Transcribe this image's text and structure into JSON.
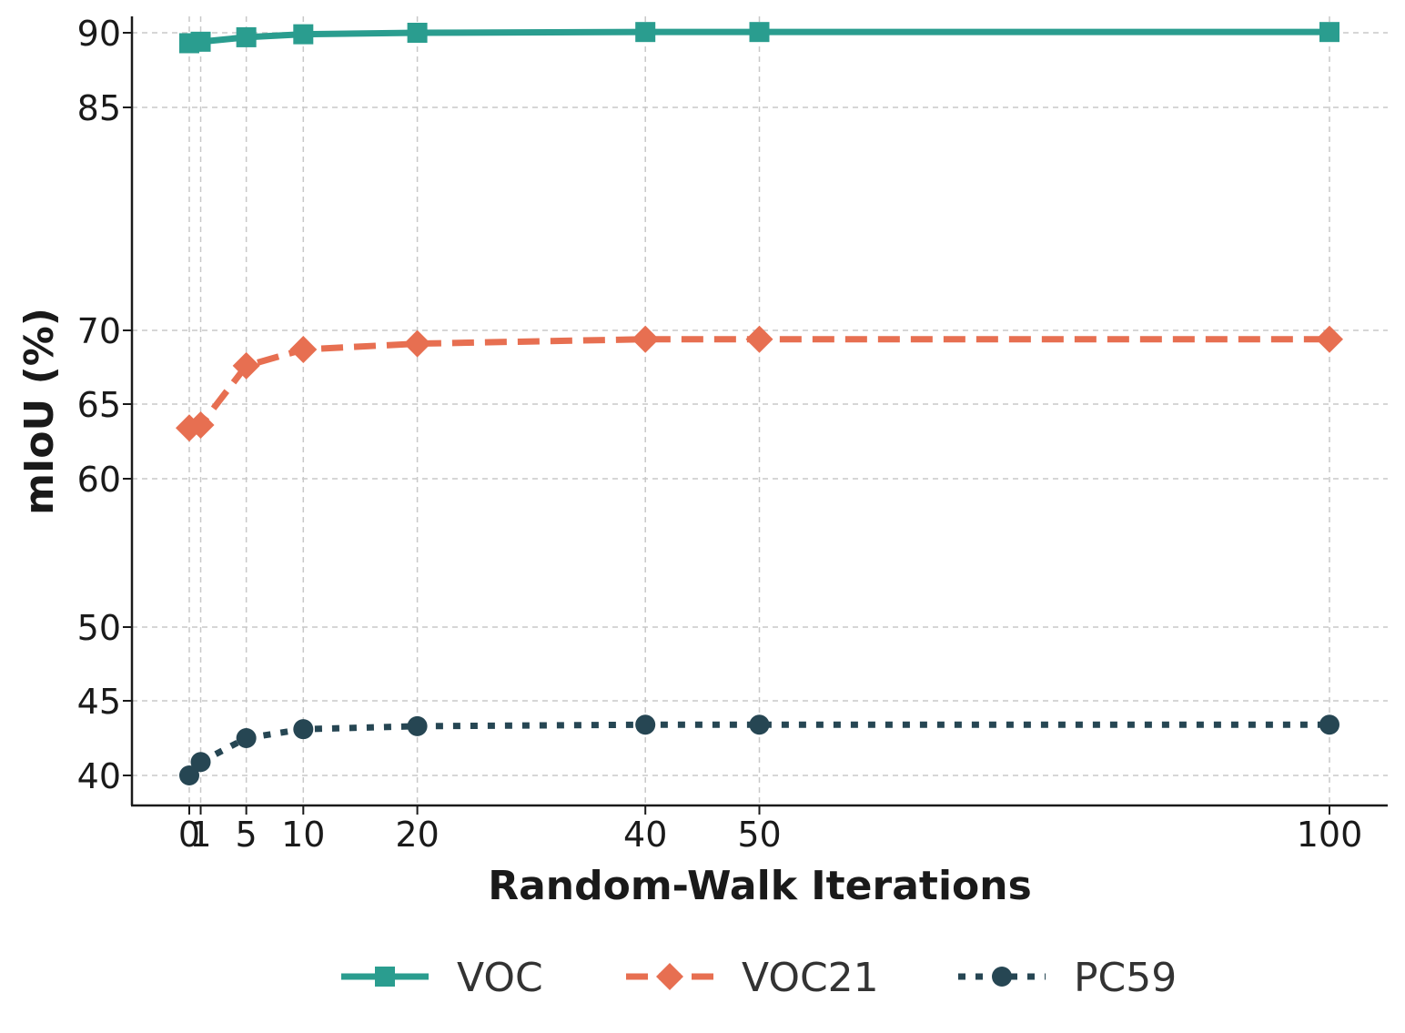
{
  "chart_data": {
    "type": "line",
    "title": "",
    "xlabel": "Random-Walk Iterations",
    "ylabel": "mIoU (%)",
    "x": [
      0,
      1,
      5,
      10,
      20,
      40,
      50,
      100
    ],
    "xticks": [
      "0",
      "1",
      "5",
      "10",
      "20",
      "40",
      "50",
      "100"
    ],
    "yticks": [
      "40",
      "45",
      "50",
      "60",
      "65",
      "70",
      "85",
      "90"
    ],
    "y_scale": "broken",
    "y_segments": [
      [
        38,
        52
      ],
      [
        58,
        72
      ],
      [
        83,
        91
      ]
    ],
    "grid": true,
    "legend_position": "bottom-center",
    "series": [
      {
        "name": "VOC",
        "color": "#2a9d8f",
        "line_style": "solid",
        "marker": "square",
        "values": [
          89.3,
          89.4,
          89.7,
          89.9,
          90.0,
          90.05,
          90.05,
          90.05
        ]
      },
      {
        "name": "VOC21",
        "color": "#e76f51",
        "line_style": "dashed",
        "marker": "diamond",
        "values": [
          63.4,
          63.6,
          67.6,
          68.7,
          69.1,
          69.4,
          69.4,
          69.4
        ]
      },
      {
        "name": "PC59",
        "color": "#264653",
        "line_style": "dotted",
        "marker": "circle",
        "values": [
          40.0,
          40.9,
          42.5,
          43.1,
          43.3,
          43.4,
          43.4,
          43.4
        ]
      }
    ]
  }
}
